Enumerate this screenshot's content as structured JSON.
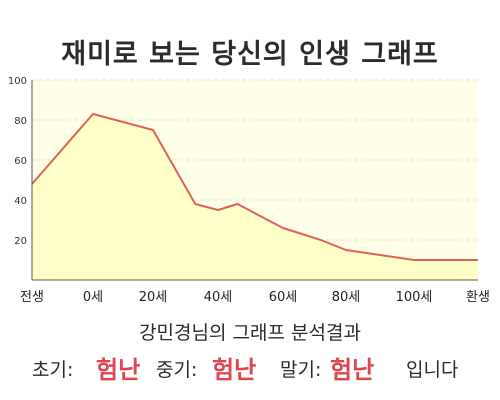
{
  "page": {
    "title": "재미로 보는 당신의 인생 그래프",
    "subtitle": "강민경님의 그래프 분석결과",
    "result": {
      "early_label": "초기:",
      "early_value": "험난",
      "middle_label": "중기:",
      "middle_value": "험난",
      "late_label": "말기:",
      "late_value": "험난",
      "suffix": "입니다"
    }
  },
  "chart_data": {
    "type": "area",
    "title": "재미로 보는 당신의 인생 그래프",
    "x_tick_labels": [
      "전생",
      "0세",
      "20세",
      "40세",
      "60세",
      "80세",
      "100세",
      "환생"
    ],
    "y_ticks": [
      20,
      40,
      60,
      80,
      100
    ],
    "ylim": [
      0,
      100
    ],
    "x": [
      "전생",
      "0세",
      "20세",
      "33세",
      "40세",
      "46세",
      "60세",
      "72세",
      "80세",
      "100세",
      "환생"
    ],
    "y": [
      48,
      83,
      75,
      38,
      35,
      38,
      26,
      20,
      15,
      10,
      10
    ],
    "grid": true,
    "legend": "none",
    "colors": {
      "line": "#e06060",
      "fill": "#ffffc8",
      "plot_bg": "#ffffe8"
    }
  }
}
